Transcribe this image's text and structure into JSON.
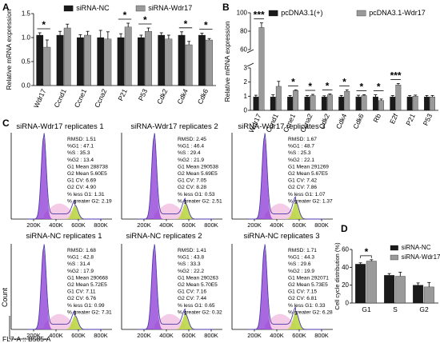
{
  "panels": {
    "a": "A",
    "b": "B",
    "c": "C",
    "d": "D"
  },
  "legends": {
    "a": [
      "siRNA-NC",
      "siRNA-Wdr17"
    ],
    "b": [
      "pcDNA3.1(+)",
      "pcDNA3.1-Wdr17"
    ],
    "d": [
      "siRNA-NC",
      "siRNA-Wdr17"
    ]
  },
  "colors": {
    "series1": "#1a1a1a",
    "series2": "#9a9a9a",
    "g1": "#8a35d6",
    "g2": "#b8d63a",
    "s_fill": "#f4c6e6",
    "curve": "#4a3aa8"
  },
  "chart_data": [
    {
      "id": "A",
      "type": "bar",
      "ylabel": "Relative mRNA expression",
      "ylim": [
        0,
        1.5
      ],
      "yticks": [
        "0.0",
        "0.5",
        "1.0",
        "1.5"
      ],
      "categories": [
        "Wdr17",
        "Ccnd1",
        "Ccne1",
        "Ccna2",
        "P21",
        "P53",
        "Cdk2",
        "Cdk4",
        "Cdk6"
      ],
      "series": [
        {
          "name": "siRNA-NC",
          "values": [
            1.05,
            1.05,
            1.0,
            1.0,
            1.0,
            1.0,
            1.05,
            1.05,
            1.05
          ],
          "errors": [
            0.05,
            0.08,
            0.06,
            0.15,
            0.08,
            0.05,
            0.05,
            0.07,
            0.04
          ]
        },
        {
          "name": "siRNA-Wdr17",
          "values": [
            0.8,
            1.2,
            1.05,
            0.97,
            1.22,
            1.13,
            0.97,
            0.85,
            0.95
          ],
          "errors": [
            0.15,
            0.08,
            0.08,
            0.15,
            0.08,
            0.07,
            0.08,
            0.07,
            0.03
          ]
        }
      ],
      "significance": [
        "*",
        "",
        "",
        "",
        "*",
        "*",
        "",
        "*",
        "*"
      ]
    },
    {
      "id": "B",
      "type": "bar",
      "ylabel": "Relative mRNA expression",
      "ylim": [
        0,
        100
      ],
      "axis_break": [
        3,
        60
      ],
      "yticks": [
        "0",
        "1",
        "2",
        "3",
        "60",
        "80",
        "100"
      ],
      "categories": [
        "Wdr17",
        "Ccnd1",
        "Ccne1",
        "Ccna2",
        "Cdk2",
        "Cdk4",
        "Cdk6",
        "Rb",
        "E2f",
        "P21",
        "P53"
      ],
      "series": [
        {
          "name": "pcDNA3.1(+)",
          "values": [
            0.95,
            0.95,
            0.95,
            0.95,
            0.95,
            0.95,
            0.95,
            0.95,
            0.95,
            0.95,
            0.95
          ],
          "errors": [
            0.12,
            0.15,
            0.1,
            0.1,
            0.08,
            0.1,
            0.12,
            0.15,
            0.1,
            0.1,
            0.1
          ]
        },
        {
          "name": "pcDNA3.1-Wdr17",
          "values": [
            84,
            1.7,
            1.4,
            1.05,
            1.1,
            1.35,
            1.05,
            0.7,
            1.8,
            1.0,
            0.95
          ],
          "errors": [
            5,
            0.35,
            0.05,
            0.08,
            0.06,
            0.1,
            0.06,
            0.1,
            0.1,
            0.08,
            0.1
          ]
        }
      ],
      "significance": [
        "***",
        "",
        "*",
        "*",
        "*",
        "*",
        "*",
        "*",
        "***",
        "",
        ""
      ]
    },
    {
      "id": "D",
      "type": "bar",
      "ylabel": "Cell cycle distribution (%)",
      "ylim": [
        0,
        60
      ],
      "yticks": [
        "0",
        "20",
        "40",
        "60"
      ],
      "categories": [
        "G1",
        "S",
        "G2"
      ],
      "series": [
        {
          "name": "siRNA-NC",
          "values": [
            43.5,
            31,
            20
          ],
          "errors": [
            1.5,
            2,
            2.5
          ]
        },
        {
          "name": "siRNA-Wdr17",
          "values": [
            47,
            30,
            18
          ],
          "errors": [
            1.5,
            4.5,
            5
          ]
        }
      ],
      "significance": [
        "*",
        "",
        ""
      ]
    }
  ],
  "flow": {
    "ylabel": "Count",
    "xlabel": "FL7-A :: B585-A",
    "xticks": [
      "200K",
      "400K",
      "600K",
      "800K"
    ],
    "panels": [
      {
        "title": "siRNA-Wdr17 replicates  1",
        "stats": [
          "RMSD: 1.51",
          "%G1 : 47.1",
          "%S : 35.3",
          "%G2 : 13.4",
          "G1 Mean 288738",
          "G2 Mean 5.60E5",
          "G1 CV: 6.69",
          "G2 CV: 4.90",
          "% less G1: 1.31",
          "% greater G2: 2.19"
        ]
      },
      {
        "title": "siRNA-Wdr17 replicates  2",
        "stats": [
          "RMSD: 2.45",
          "%G1 : 46.4",
          "%S : 29.4",
          "%G2 : 21.9",
          "G1 Mean 290538",
          "G2 Mean 5.69E5",
          "G1 CV: 7.05",
          "G2 CV: 8.28",
          "% less G1: 0.53",
          "% greater G2: 2.51"
        ]
      },
      {
        "title": "siRNA-Wdr17 replicates  3",
        "stats": [
          "RMSD: 1.67",
          "%G1 : 48.7",
          "%S : 25.3",
          "%G2 : 22.1",
          "G1 Mean 291269",
          "G2 Mean 5.67E5",
          "G1 CV: 7.42",
          "G2 CV: 7.86",
          "% less G1: 1.07",
          "% greater G2: 1.37"
        ]
      },
      {
        "title": "siRNA-NC replicates  1",
        "stats": [
          "RMSD: 1.68",
          "%G1 : 42.8",
          "%S : 31.4",
          "%G2 : 17.9",
          "G1 Mean 290668",
          "G2 Mean 5.72E5",
          "G1 CV: 7.11",
          "G2 CV: 6.76",
          "% less G1: 0.99",
          "% greater G2: 7.31"
        ]
      },
      {
        "title": "siRNA-NC replicates  2",
        "stats": [
          "RMSD: 1.41",
          "%G1 : 43.8",
          "%S : 33.3",
          "%G2 : 22.2",
          "G1 Mean 290263",
          "G2 Mean 5.70E5",
          "G1 CV: 7.16",
          "G2 CV: 7.44",
          "% less G1: 0.65",
          "% greater G2: 0.32"
        ]
      },
      {
        "title": "siRNA-NC replicates  3",
        "stats": [
          "RMSD: 1.71",
          "%G1 : 44.3",
          "%S : 29.6",
          "%G2 : 19.9",
          "G1 Mean 292071",
          "G2 Mean 5.73E5",
          "G1 CV: 7.15",
          "G2 CV: 6.81",
          "% less G1: 0.33",
          "% greater G2: 6.28"
        ]
      }
    ]
  }
}
